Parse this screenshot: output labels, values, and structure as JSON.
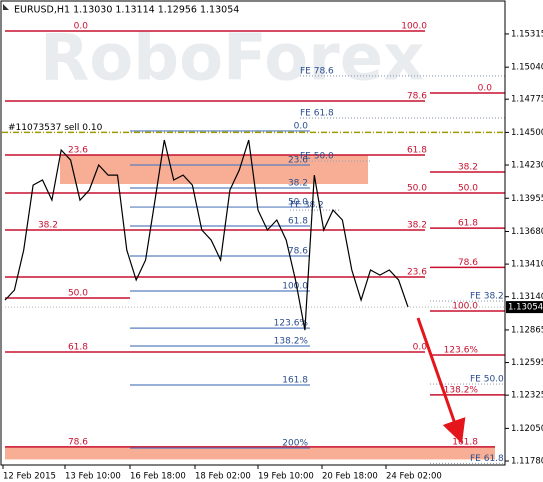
{
  "chart_data": {
    "type": "line",
    "title": "EURUSD,H1  1.13030 1.13114 1.12956 1.13054",
    "watermark": "RoboForex",
    "order_label": "#11073537 sell 0.10",
    "order_price": 1.145,
    "time_labels": [
      "12 Feb 2015",
      "13 Feb 10:00",
      "16 Feb 18:00",
      "18 Feb 02:00",
      "19 Feb 10:00",
      "20 Feb 18:00",
      "24 Feb 02:00"
    ],
    "series": [
      {
        "name": "EURUSD,H1",
        "color": "#000000",
        "values": [
          1.13112,
          1.13195,
          1.13526,
          1.14064,
          1.14106,
          1.1394,
          1.14354,
          1.14271,
          1.1394,
          1.14023,
          1.1423,
          1.14147,
          1.14147,
          1.13526,
          1.13278,
          1.13444,
          1.1394,
          1.14437,
          1.14106,
          1.14147,
          1.14064,
          1.13692,
          1.13609,
          1.13444,
          1.14023,
          1.14189,
          1.14437,
          1.13857,
          1.13692,
          1.13775,
          1.13609,
          1.13278,
          1.12864,
          1.14147,
          1.13692,
          1.13857,
          1.13775,
          1.13361,
          1.13112,
          1.13361,
          1.13319,
          1.13361,
          1.13278,
          1.13054
        ]
      }
    ],
    "ylim": [
      1.11747,
      1.15596
    ],
    "yticks": [
      1.15315,
      {
        "value": 1.1504,
        "label": "1.15040"
      },
      1.14775,
      {
        "value": 1.145,
        "label": "1.14500"
      },
      {
        "value": 1.1423,
        "label": "1.14230"
      },
      1.13955,
      {
        "value": 1.1368,
        "label": "1.13680"
      },
      {
        "value": 1.1341,
        "label": "1.13410"
      },
      {
        "value": 1.1314,
        "label": "1.13140"
      },
      1.12865,
      1.12595,
      1.12325,
      {
        "value": 1.1205,
        "label": "1.12050"
      },
      {
        "value": 1.1178,
        "label": "1.11780"
      }
    ],
    "zones": [
      {
        "from": 1.14313,
        "to": 1.14073,
        "color": "#f7a58a"
      },
      {
        "from": 1.11897,
        "to": 1.11793,
        "color": "#f7a58a"
      }
    ],
    "levels": [
      {
        "value": 1.15339,
        "labels": [
          "0.0",
          "100.0"
        ],
        "color": "#c8102e"
      },
      {
        "value": 1.14826,
        "labels": [
          "0.0"
        ],
        "color": "#c8102e"
      },
      {
        "value": 1.1476,
        "labels": [
          "78.6"
        ],
        "color": "#c8102e"
      },
      {
        "value": 1.14313,
        "labels": [
          "23.6",
          "61.8"
        ],
        "color": "#c8102e"
      },
      {
        "value": 1.14172,
        "labels": [
          "38.2"
        ],
        "color": "#c8102e"
      },
      {
        "value": 1.13998,
        "labels": [
          "50.0",
          "50.0"
        ],
        "color": "#c8102e"
      },
      {
        "value": 1.13692,
        "labels": [
          "38.2",
          "38.2"
        ],
        "color": "#c8102e"
      },
      {
        "value": 1.13708,
        "labels": [
          "61.8"
        ],
        "color": "#c8102e"
      },
      {
        "value": 1.13383,
        "labels": [
          "78.6"
        ],
        "color": "#c8102e"
      },
      {
        "value": 1.13303,
        "labels": [
          "23.6"
        ],
        "color": "#c8102e"
      },
      {
        "value": 1.13129,
        "labels": [
          "50.0"
        ],
        "color": "#c8102e"
      },
      {
        "value": 1.13022,
        "labels": [
          "100.0"
        ],
        "color": "#c8102e"
      },
      {
        "value": 1.12682,
        "labels": [
          "61.8",
          "0.0"
        ],
        "color": "#c8102e"
      },
      {
        "value": 1.12657,
        "labels": [
          "123.6%"
        ],
        "color": "#c8102e"
      },
      {
        "value": 1.12327,
        "labels": [
          "138.2%"
        ],
        "color": "#c8102e"
      },
      {
        "value": 1.11897,
        "labels": [
          "78.6",
          "161.8"
        ],
        "color": "#c8102e"
      },
      {
        "value": 1.14968,
        "labels": [
          "FE 78.6"
        ],
        "color": "#2a4d8f"
      },
      {
        "value": 1.14619,
        "labels": [
          "FE 61.8"
        ],
        "color": "#2a4d8f"
      },
      {
        "value": 1.14263,
        "labels": [
          "FE 50.0"
        ],
        "color": "#2a4d8f"
      },
      {
        "value": 1.14512,
        "labels": [
          "0.0"
        ],
        "color": "#2a4d8f"
      },
      {
        "value": 1.1423,
        "labels": [
          "23.6"
        ],
        "color": "#2a4d8f"
      },
      {
        "value": 1.1404,
        "labels": [
          "38.2"
        ],
        "color": "#2a4d8f"
      },
      {
        "value": 1.13882,
        "labels": [
          "50.0"
        ],
        "color": "#2a4d8f"
      },
      {
        "value": 1.13857,
        "labels": [
          "FE 38.2"
        ],
        "color": "#2a4d8f"
      },
      {
        "value": 1.13725,
        "labels": [
          "61.8"
        ],
        "color": "#2a4d8f"
      },
      {
        "value": 1.13477,
        "labels": [
          "78.6"
        ],
        "color": "#2a4d8f"
      },
      {
        "value": 1.13187,
        "labels": [
          "100.0"
        ],
        "color": "#2a4d8f"
      },
      {
        "value": 1.1288,
        "labels": [
          "123.6%"
        ],
        "color": "#2a4d8f"
      },
      {
        "value": 1.12732,
        "labels": [
          "138.2%"
        ],
        "color": "#2a4d8f"
      },
      {
        "value": 1.12409,
        "labels": [
          "161.8"
        ],
        "color": "#2a4d8f"
      },
      {
        "value": 1.11887,
        "labels": [
          "200%"
        ],
        "color": "#2a4d8f"
      },
      {
        "value": 1.13104,
        "labels": [
          "FE 38.2"
        ],
        "color": "#2a4d8f"
      },
      {
        "value": 1.12417,
        "labels": [
          "FE 50.0"
        ],
        "color": "#2a4d8f"
      },
      {
        "value": 1.1176,
        "labels": [
          "FE 61.8"
        ],
        "color": "#2a4d8f"
      }
    ]
  }
}
